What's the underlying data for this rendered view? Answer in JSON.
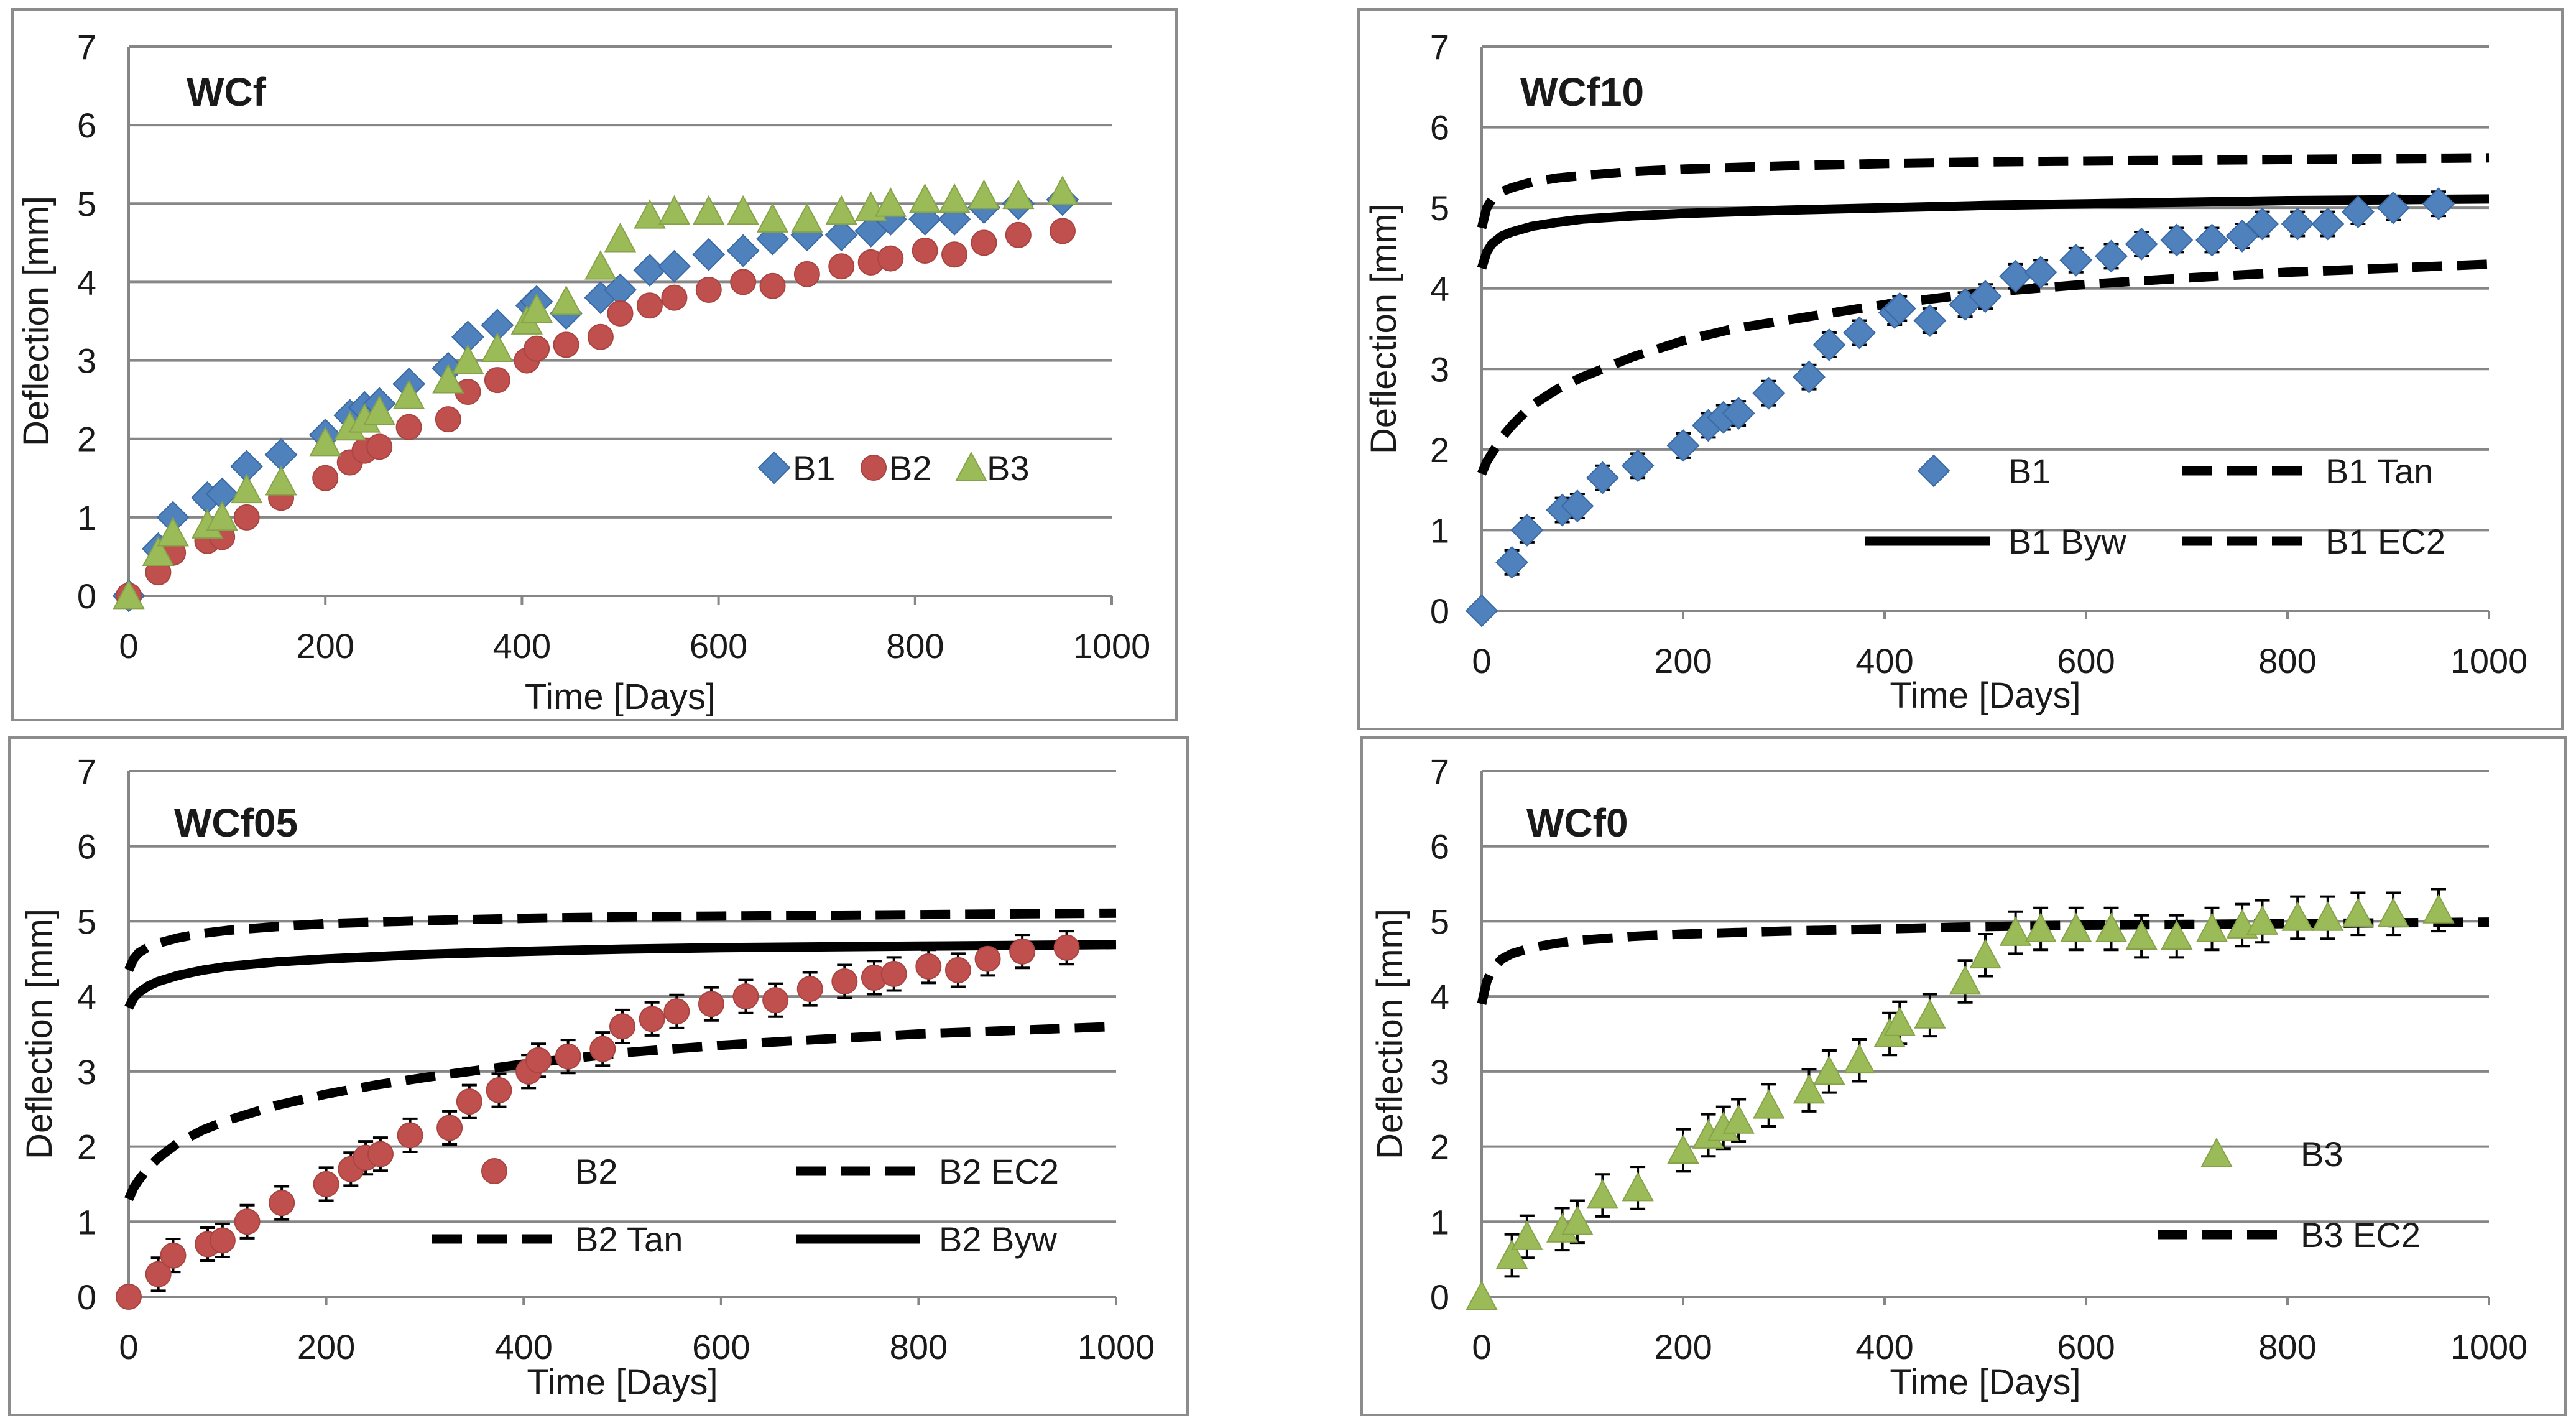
{
  "chart_data": [
    {
      "type": "scatter",
      "title": "WCf",
      "xlabel": "Time [Days]",
      "ylabel": "Deflection [mm]",
      "xlim": [
        0,
        1000
      ],
      "ylim": [
        0,
        7
      ],
      "x_ticks": [
        "0",
        "200",
        "400",
        "600",
        "800",
        "1000"
      ],
      "y_ticks": [
        "0",
        "1",
        "2",
        "3",
        "4",
        "5",
        "6",
        "7"
      ],
      "grid": "horizontal",
      "legend_position": "middle-right",
      "series": [
        {
          "name": "B1",
          "marker": "diamond",
          "color": "#4f81bd",
          "x": [
            0,
            30,
            45,
            80,
            95,
            120,
            155,
            200,
            225,
            240,
            255,
            285,
            325,
            345,
            375,
            410,
            415,
            445,
            480,
            500,
            530,
            555,
            590,
            625,
            655,
            690,
            725,
            755,
            775,
            810,
            840,
            870,
            905,
            950
          ],
          "y": [
            0,
            0.6,
            1.0,
            1.25,
            1.3,
            1.65,
            1.8,
            2.05,
            2.3,
            2.4,
            2.45,
            2.7,
            2.9,
            3.3,
            3.45,
            3.7,
            3.75,
            3.6,
            3.8,
            3.9,
            4.15,
            4.2,
            4.35,
            4.4,
            4.55,
            4.6,
            4.6,
            4.65,
            4.8,
            4.8,
            4.8,
            4.95,
            5.0,
            5.05
          ]
        },
        {
          "name": "B2",
          "marker": "circle",
          "color": "#c0504d",
          "x": [
            0,
            30,
            45,
            80,
            95,
            120,
            155,
            200,
            225,
            240,
            255,
            285,
            325,
            345,
            375,
            405,
            415,
            445,
            480,
            500,
            530,
            555,
            590,
            625,
            655,
            690,
            725,
            755,
            775,
            810,
            840,
            870,
            905,
            950
          ],
          "y": [
            0,
            0.3,
            0.55,
            0.7,
            0.75,
            1.0,
            1.25,
            1.5,
            1.7,
            1.85,
            1.9,
            2.15,
            2.25,
            2.6,
            2.75,
            3.0,
            3.15,
            3.2,
            3.3,
            3.6,
            3.7,
            3.8,
            3.9,
            4.0,
            3.95,
            4.1,
            4.2,
            4.25,
            4.3,
            4.4,
            4.35,
            4.5,
            4.6,
            4.65
          ]
        },
        {
          "name": "B3",
          "marker": "triangle",
          "color": "#9bbb59",
          "x": [
            0,
            30,
            45,
            80,
            95,
            120,
            155,
            200,
            225,
            240,
            255,
            285,
            325,
            345,
            375,
            405,
            415,
            445,
            480,
            500,
            530,
            555,
            590,
            625,
            655,
            690,
            725,
            755,
            775,
            810,
            840,
            870,
            905,
            950
          ],
          "y": [
            0,
            0.55,
            0.8,
            0.9,
            1.0,
            1.35,
            1.45,
            1.95,
            2.15,
            2.25,
            2.35,
            2.55,
            2.75,
            3.0,
            3.15,
            3.5,
            3.65,
            3.75,
            4.2,
            4.55,
            4.85,
            4.9,
            4.9,
            4.9,
            4.8,
            4.8,
            4.9,
            4.95,
            5.0,
            5.05,
            5.05,
            5.1,
            5.1,
            5.15
          ]
        }
      ]
    },
    {
      "type": "scatter",
      "title": "WCf10",
      "xlabel": "Time [Days]",
      "ylabel": "Deflection [mm]",
      "xlim": [
        0,
        1000
      ],
      "ylim": [
        0,
        7
      ],
      "x_ticks": [
        "0",
        "200",
        "400",
        "600",
        "800",
        "1000"
      ],
      "y_ticks": [
        "0",
        "1",
        "2",
        "3",
        "4",
        "5",
        "6",
        "7"
      ],
      "grid": "horizontal",
      "legend_position": "bottom-right",
      "series": [
        {
          "name": "B1",
          "marker": "diamond",
          "color": "#4f81bd",
          "error_bars": 0.15,
          "x": [
            0,
            30,
            45,
            80,
            95,
            120,
            155,
            200,
            225,
            240,
            255,
            285,
            325,
            345,
            375,
            410,
            415,
            445,
            480,
            500,
            530,
            555,
            590,
            625,
            655,
            690,
            725,
            755,
            775,
            810,
            840,
            870,
            905,
            950
          ],
          "y": [
            0,
            0.6,
            1.0,
            1.25,
            1.3,
            1.65,
            1.8,
            2.05,
            2.3,
            2.4,
            2.45,
            2.7,
            2.9,
            3.3,
            3.45,
            3.7,
            3.75,
            3.6,
            3.8,
            3.9,
            4.15,
            4.2,
            4.35,
            4.4,
            4.55,
            4.6,
            4.6,
            4.65,
            4.8,
            4.8,
            4.8,
            4.95,
            5.0,
            5.05
          ]
        },
        {
          "name": "B1 Tan",
          "style": "dashed",
          "color": "#000000",
          "x": [
            0,
            5,
            10,
            20,
            30,
            50,
            75,
            100,
            150,
            200,
            250,
            300,
            400,
            500,
            600,
            700,
            800,
            900,
            1000
          ],
          "y": [
            1.7,
            1.85,
            1.95,
            2.15,
            2.3,
            2.55,
            2.75,
            2.9,
            3.15,
            3.35,
            3.5,
            3.6,
            3.8,
            3.95,
            4.05,
            4.13,
            4.2,
            4.25,
            4.3
          ]
        },
        {
          "name": "B1 Byw",
          "style": "solid",
          "color": "#000000",
          "x": [
            0,
            5,
            10,
            20,
            30,
            50,
            75,
            100,
            150,
            200,
            300,
            400,
            500,
            600,
            700,
            800,
            900,
            1000
          ],
          "y": [
            4.25,
            4.45,
            4.55,
            4.65,
            4.7,
            4.77,
            4.82,
            4.86,
            4.9,
            4.93,
            4.97,
            5.0,
            5.03,
            5.05,
            5.07,
            5.09,
            5.1,
            5.11
          ]
        },
        {
          "name": "B1 EC2",
          "style": "dashed",
          "color": "#000000",
          "x": [
            0,
            5,
            10,
            20,
            30,
            50,
            75,
            100,
            150,
            200,
            300,
            400,
            500,
            600,
            700,
            800,
            900,
            1000
          ],
          "y": [
            4.75,
            5.0,
            5.1,
            5.2,
            5.25,
            5.32,
            5.37,
            5.4,
            5.45,
            5.48,
            5.52,
            5.55,
            5.57,
            5.58,
            5.59,
            5.6,
            5.61,
            5.62
          ]
        }
      ]
    },
    {
      "type": "scatter",
      "title": "WCf05",
      "xlabel": "Time [Days]",
      "ylabel": "Deflection [mm]",
      "xlim": [
        0,
        1000
      ],
      "ylim": [
        0,
        7
      ],
      "x_ticks": [
        "0",
        "200",
        "400",
        "600",
        "800",
        "1000"
      ],
      "y_ticks": [
        "0",
        "1",
        "2",
        "3",
        "4",
        "5",
        "6",
        "7"
      ],
      "grid": "horizontal",
      "legend_position": "bottom-right",
      "series": [
        {
          "name": "B2",
          "marker": "circle",
          "color": "#c0504d",
          "error_bars": 0.22,
          "x": [
            0,
            30,
            45,
            80,
            95,
            120,
            155,
            200,
            225,
            240,
            255,
            285,
            325,
            345,
            375,
            405,
            415,
            445,
            480,
            500,
            530,
            555,
            590,
            625,
            655,
            690,
            725,
            755,
            775,
            810,
            840,
            870,
            905,
            950
          ],
          "y": [
            0,
            0.3,
            0.55,
            0.7,
            0.75,
            1.0,
            1.25,
            1.5,
            1.7,
            1.85,
            1.9,
            2.15,
            2.25,
            2.6,
            2.75,
            3.0,
            3.15,
            3.2,
            3.3,
            3.6,
            3.7,
            3.8,
            3.9,
            4.0,
            3.95,
            4.1,
            4.2,
            4.25,
            4.3,
            4.4,
            4.35,
            4.5,
            4.6,
            4.65
          ]
        },
        {
          "name": "B2 EC2",
          "style": "dashed",
          "color": "#000000",
          "x": [
            0,
            5,
            10,
            20,
            30,
            50,
            75,
            100,
            150,
            200,
            300,
            400,
            500,
            600,
            700,
            800,
            900,
            1000
          ],
          "y": [
            4.35,
            4.5,
            4.58,
            4.66,
            4.71,
            4.78,
            4.84,
            4.88,
            4.93,
            4.97,
            5.01,
            5.04,
            5.06,
            5.07,
            5.08,
            5.09,
            5.1,
            5.11
          ]
        },
        {
          "name": "B2 Tan",
          "style": "dashed",
          "color": "#000000",
          "x": [
            0,
            5,
            10,
            20,
            30,
            50,
            75,
            100,
            150,
            200,
            250,
            300,
            400,
            500,
            600,
            700,
            800,
            900,
            1000
          ],
          "y": [
            1.3,
            1.45,
            1.55,
            1.72,
            1.85,
            2.05,
            2.22,
            2.35,
            2.55,
            2.7,
            2.82,
            2.92,
            3.1,
            3.25,
            3.35,
            3.43,
            3.5,
            3.55,
            3.6
          ]
        },
        {
          "name": "B2 Byw",
          "style": "solid",
          "color": "#000000",
          "x": [
            0,
            5,
            10,
            20,
            30,
            50,
            75,
            100,
            150,
            200,
            300,
            400,
            500,
            600,
            700,
            800,
            900,
            1000
          ],
          "y": [
            3.85,
            3.98,
            4.05,
            4.14,
            4.2,
            4.28,
            4.35,
            4.4,
            4.46,
            4.5,
            4.56,
            4.6,
            4.63,
            4.65,
            4.66,
            4.67,
            4.68,
            4.69
          ]
        }
      ]
    },
    {
      "type": "scatter",
      "title": "WCf0",
      "xlabel": "Time [Days]",
      "ylabel": "Deflection [mm]",
      "xlim": [
        0,
        1000
      ],
      "ylim": [
        0,
        7
      ],
      "x_ticks": [
        "0",
        "200",
        "400",
        "600",
        "800",
        "1000"
      ],
      "y_ticks": [
        "0",
        "1",
        "2",
        "3",
        "4",
        "5",
        "6",
        "7"
      ],
      "grid": "horizontal",
      "legend_position": "bottom-right",
      "series": [
        {
          "name": "B3",
          "marker": "triangle",
          "color": "#9bbb59",
          "error_bars": 0.28,
          "x": [
            0,
            30,
            45,
            80,
            95,
            120,
            155,
            200,
            225,
            240,
            255,
            285,
            325,
            345,
            375,
            405,
            415,
            445,
            480,
            500,
            530,
            555,
            590,
            625,
            655,
            690,
            725,
            755,
            775,
            810,
            840,
            870,
            905,
            950
          ],
          "y": [
            0,
            0.55,
            0.8,
            0.9,
            1.0,
            1.35,
            1.45,
            1.95,
            2.15,
            2.25,
            2.35,
            2.55,
            2.75,
            3.0,
            3.15,
            3.5,
            3.65,
            3.75,
            4.2,
            4.55,
            4.85,
            4.9,
            4.9,
            4.9,
            4.8,
            4.8,
            4.9,
            4.95,
            5.0,
            5.05,
            5.05,
            5.1,
            5.1,
            5.15
          ]
        },
        {
          "name": "B3 EC2",
          "style": "dashed",
          "color": "#000000",
          "x": [
            0,
            5,
            10,
            20,
            30,
            50,
            75,
            100,
            150,
            200,
            300,
            400,
            500,
            600,
            700,
            800,
            900,
            1000
          ],
          "y": [
            3.9,
            4.2,
            4.35,
            4.5,
            4.57,
            4.65,
            4.71,
            4.75,
            4.8,
            4.83,
            4.87,
            4.9,
            4.93,
            4.95,
            4.96,
            4.97,
            4.98,
            4.99
          ]
        }
      ]
    }
  ]
}
